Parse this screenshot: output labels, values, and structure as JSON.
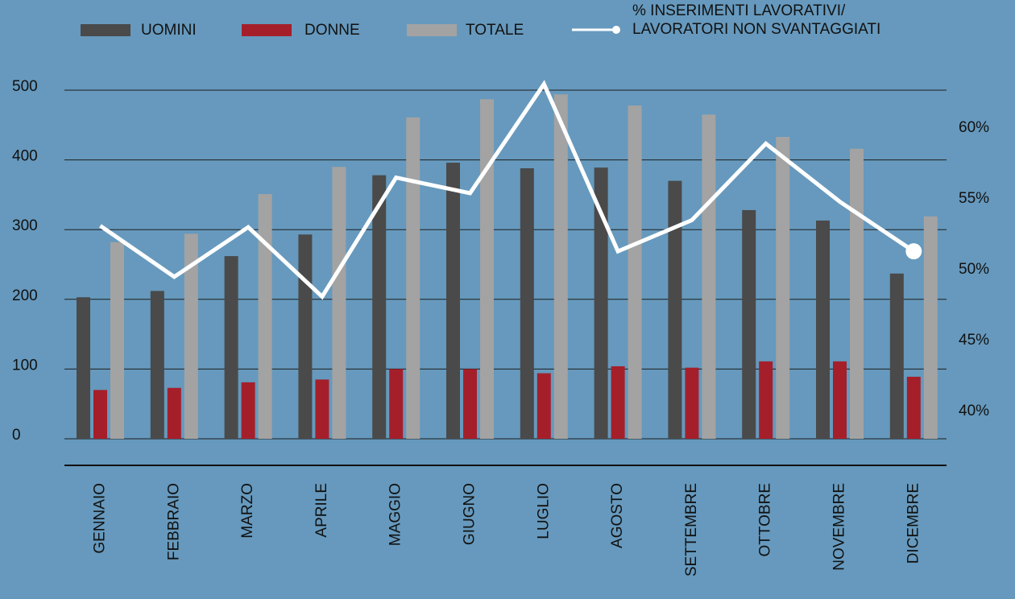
{
  "chart_data": {
    "type": "bar",
    "categories": [
      "GENNAIO",
      "FEBBRAIO",
      "MARZO",
      "APRILE",
      "MAGGIO",
      "GIUGNO",
      "LUGLIO",
      "AGOSTO",
      "SETTEMBRE",
      "OTTOBRE",
      "NOVEMBRE",
      "DICEMBRE"
    ],
    "series": [
      {
        "name": "UOMINI",
        "color": "#4a4a4a",
        "values": [
          203,
          212,
          262,
          293,
          378,
          396,
          388,
          389,
          370,
          328,
          313,
          237
        ]
      },
      {
        "name": "DONNE",
        "color": "#a51f2a",
        "values": [
          70,
          73,
          81,
          85,
          100,
          100,
          94,
          104,
          102,
          111,
          111,
          89
        ]
      },
      {
        "name": "TOTALE",
        "color": "#a3a3a3",
        "values": [
          282,
          294,
          351,
          390,
          461,
          487,
          494,
          478,
          465,
          433,
          416,
          319
        ]
      },
      {
        "name": "% INSERIMENTI LAVORATIVI/\nLAVORATORI NON SVANTAGGIATI",
        "color": "#ffffff",
        "type": "line",
        "axis": "y2",
        "values": [
          53.1,
          49.5,
          53.0,
          48.1,
          56.5,
          55.4,
          63.1,
          51.3,
          53.5,
          58.9,
          54.8,
          51.3
        ]
      }
    ],
    "ylim": [
      0,
      500
    ],
    "yticks": [
      0,
      100,
      200,
      300,
      400,
      500
    ],
    "y2lim": [
      38.07,
      62.67
    ],
    "y2ticks": [
      {
        "value": 40,
        "label": "40%"
      },
      {
        "value": 45,
        "label": "45%"
      },
      {
        "value": 50,
        "label": "50%"
      },
      {
        "value": 55,
        "label": "55%"
      },
      {
        "value": 60,
        "label": "60%"
      }
    ],
    "grid": true
  }
}
